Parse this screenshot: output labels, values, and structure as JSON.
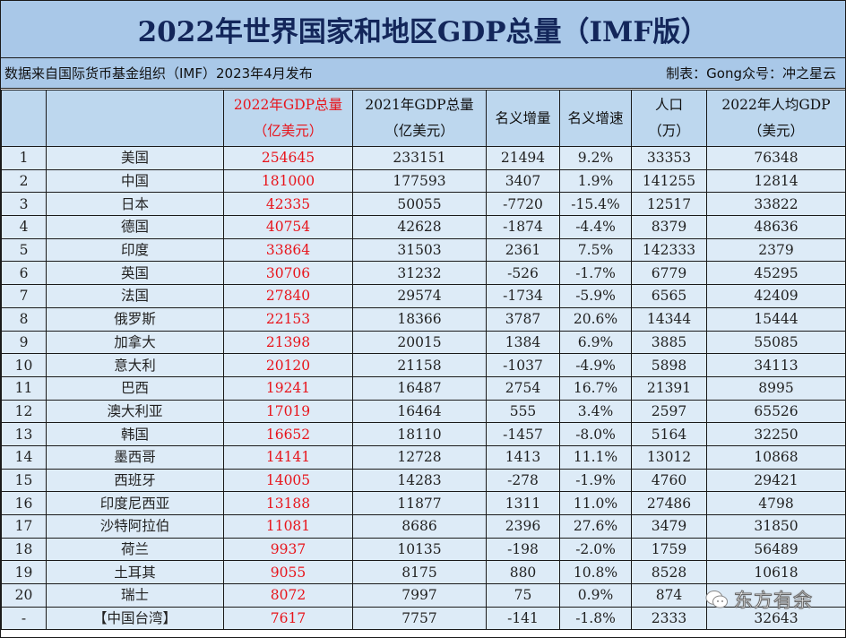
{
  "header": {
    "title": "2022年世界国家和地区GDP总量（IMF版）",
    "source_note": "数据来自国际货币基金组织（IMF）2023年4月发布",
    "credit": "制表：Gong众号：冲之星云"
  },
  "table": {
    "columns": [
      {
        "line1": "",
        "line2": ""
      },
      {
        "line1": "",
        "line2": ""
      },
      {
        "line1": "2022年GDP总量",
        "line2": "（亿美元）"
      },
      {
        "line1": "2021年GDP总量",
        "line2": "（亿美元）"
      },
      {
        "line1": "名义增量",
        "line2": ""
      },
      {
        "line1": "名义增速",
        "line2": ""
      },
      {
        "line1": "人口",
        "line2": "（万）"
      },
      {
        "line1": "2022年人均GDP",
        "line2": "（美元）"
      }
    ],
    "rows": [
      {
        "rank": "1",
        "country": "美国",
        "gdp2022": "254645",
        "gdp2021": "233151",
        "increase": "21494",
        "growth": "9.2%",
        "population": "33353",
        "per_capita": "76348"
      },
      {
        "rank": "2",
        "country": "中国",
        "gdp2022": "181000",
        "gdp2021": "177593",
        "increase": "3407",
        "growth": "1.9%",
        "population": "141255",
        "per_capita": "12814"
      },
      {
        "rank": "3",
        "country": "日本",
        "gdp2022": "42335",
        "gdp2021": "50055",
        "increase": "-7720",
        "growth": "-15.4%",
        "population": "12517",
        "per_capita": "33822"
      },
      {
        "rank": "4",
        "country": "德国",
        "gdp2022": "40754",
        "gdp2021": "42628",
        "increase": "-1874",
        "growth": "-4.4%",
        "population": "8379",
        "per_capita": "48636"
      },
      {
        "rank": "5",
        "country": "印度",
        "gdp2022": "33864",
        "gdp2021": "31503",
        "increase": "2361",
        "growth": "7.5%",
        "population": "142333",
        "per_capita": "2379"
      },
      {
        "rank": "6",
        "country": "英国",
        "gdp2022": "30706",
        "gdp2021": "31232",
        "increase": "-526",
        "growth": "-1.7%",
        "population": "6779",
        "per_capita": "45295"
      },
      {
        "rank": "7",
        "country": "法国",
        "gdp2022": "27840",
        "gdp2021": "29574",
        "increase": "-1734",
        "growth": "-5.9%",
        "population": "6565",
        "per_capita": "42409"
      },
      {
        "rank": "8",
        "country": "俄罗斯",
        "gdp2022": "22153",
        "gdp2021": "18366",
        "increase": "3787",
        "growth": "20.6%",
        "population": "14344",
        "per_capita": "15444"
      },
      {
        "rank": "9",
        "country": "加拿大",
        "gdp2022": "21398",
        "gdp2021": "20015",
        "increase": "1384",
        "growth": "6.9%",
        "population": "3885",
        "per_capita": "55085"
      },
      {
        "rank": "10",
        "country": "意大利",
        "gdp2022": "20120",
        "gdp2021": "21158",
        "increase": "-1037",
        "growth": "-4.9%",
        "population": "5898",
        "per_capita": "34113"
      },
      {
        "rank": "11",
        "country": "巴西",
        "gdp2022": "19241",
        "gdp2021": "16487",
        "increase": "2754",
        "growth": "16.7%",
        "population": "21391",
        "per_capita": "8995"
      },
      {
        "rank": "12",
        "country": "澳大利亚",
        "gdp2022": "17019",
        "gdp2021": "16464",
        "increase": "555",
        "growth": "3.4%",
        "population": "2597",
        "per_capita": "65526"
      },
      {
        "rank": "13",
        "country": "韩国",
        "gdp2022": "16652",
        "gdp2021": "18110",
        "increase": "-1457",
        "growth": "-8.0%",
        "population": "5164",
        "per_capita": "32250"
      },
      {
        "rank": "14",
        "country": "墨西哥",
        "gdp2022": "14141",
        "gdp2021": "12728",
        "increase": "1413",
        "growth": "11.1%",
        "population": "13012",
        "per_capita": "10868"
      },
      {
        "rank": "15",
        "country": "西班牙",
        "gdp2022": "14005",
        "gdp2021": "14283",
        "increase": "-278",
        "growth": "-1.9%",
        "population": "4760",
        "per_capita": "29421"
      },
      {
        "rank": "16",
        "country": "印度尼西亚",
        "gdp2022": "13188",
        "gdp2021": "11877",
        "increase": "1311",
        "growth": "11.0%",
        "population": "27486",
        "per_capita": "4798"
      },
      {
        "rank": "17",
        "country": "沙特阿拉伯",
        "gdp2022": "11081",
        "gdp2021": "8686",
        "increase": "2396",
        "growth": "27.6%",
        "population": "3479",
        "per_capita": "31850"
      },
      {
        "rank": "18",
        "country": "荷兰",
        "gdp2022": "9937",
        "gdp2021": "10135",
        "increase": "-198",
        "growth": "-2.0%",
        "population": "1759",
        "per_capita": "56489"
      },
      {
        "rank": "19",
        "country": "土耳其",
        "gdp2022": "9055",
        "gdp2021": "8175",
        "increase": "880",
        "growth": "10.8%",
        "population": "8528",
        "per_capita": "10618"
      },
      {
        "rank": "20",
        "country": "瑞士",
        "gdp2022": "8072",
        "gdp2021": "7997",
        "increase": "75",
        "growth": "0.9%",
        "population": "874",
        "per_capita": ""
      },
      {
        "rank": "-",
        "country": "【中国台湾】",
        "gdp2022": "7617",
        "gdp2021": "7757",
        "increase": "-141",
        "growth": "-1.8%",
        "population": "2333",
        "per_capita": "32643"
      }
    ]
  },
  "watermark": {
    "icon": "wechat-icon",
    "text": "东方有余"
  },
  "colors": {
    "title_band": "#A9C8E8",
    "header_row": "#BDD7EE",
    "data_row": "#DDEBF7",
    "title_text": "#13265A",
    "highlight_red": "#E8141B"
  }
}
